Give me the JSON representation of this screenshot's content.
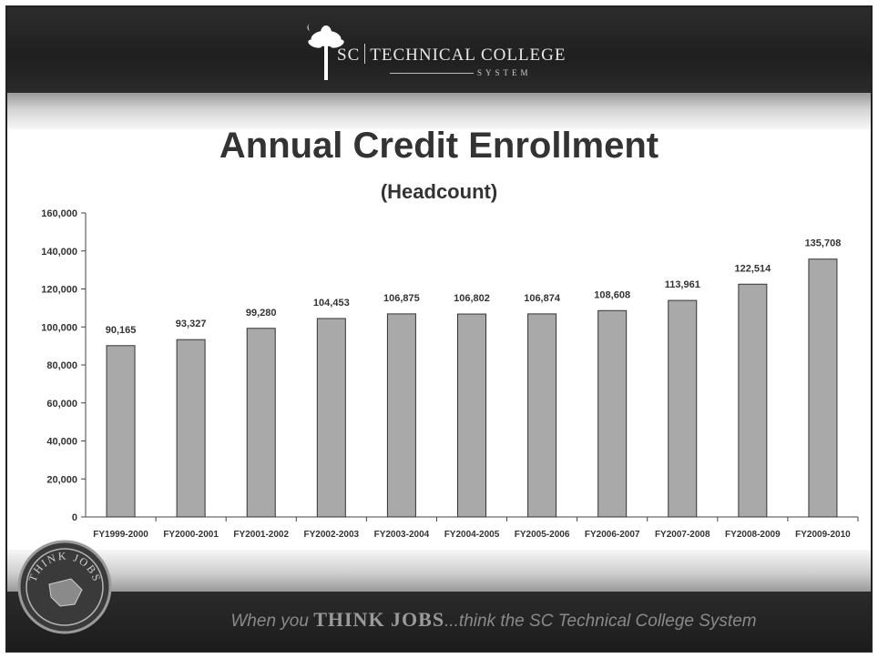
{
  "header": {
    "logo_text_left": "SC",
    "logo_text_right": "TECHNICAL COLLEGE",
    "logo_sub": "SYSTEM"
  },
  "chart_data": {
    "type": "bar",
    "title": "Annual Credit Enrollment",
    "subtitle": "(Headcount)",
    "categories": [
      "FY1999-2000",
      "FY2000-2001",
      "FY2001-2002",
      "FY2002-2003",
      "FY2003-2004",
      "FY2004-2005",
      "FY2005-2006",
      "FY2006-2007",
      "FY2007-2008",
      "FY2008-2009",
      "FY2009-2010"
    ],
    "values": [
      90165,
      93327,
      99280,
      104453,
      106875,
      106802,
      106874,
      108608,
      113961,
      122514,
      135708
    ],
    "data_labels": [
      "90,165",
      "93,327",
      "99,280",
      "104,453",
      "106,875",
      "106,802",
      "106,874",
      "108,608",
      "113,961",
      "122,514",
      "135,708"
    ],
    "ylim": [
      0,
      160000
    ],
    "yticks": [
      0,
      20000,
      40000,
      60000,
      80000,
      100000,
      120000,
      140000,
      160000
    ],
    "ytick_labels": [
      "0",
      "20,000",
      "40,000",
      "60,000",
      "80,000",
      "100,000",
      "120,000",
      "140,000",
      "160,000"
    ],
    "grid": false,
    "legend": "none",
    "bar_color": "#a9a9a9",
    "bar_edge_color": "#333333"
  },
  "footer": {
    "seal_text": "THINK JOBS",
    "tagline_pre": "When you ",
    "tagline_strong": "THINK JOBS",
    "tagline_post": "...think the SC Technical College System"
  },
  "colors": {
    "header_bg": "#222222",
    "title_text": "#333333"
  }
}
